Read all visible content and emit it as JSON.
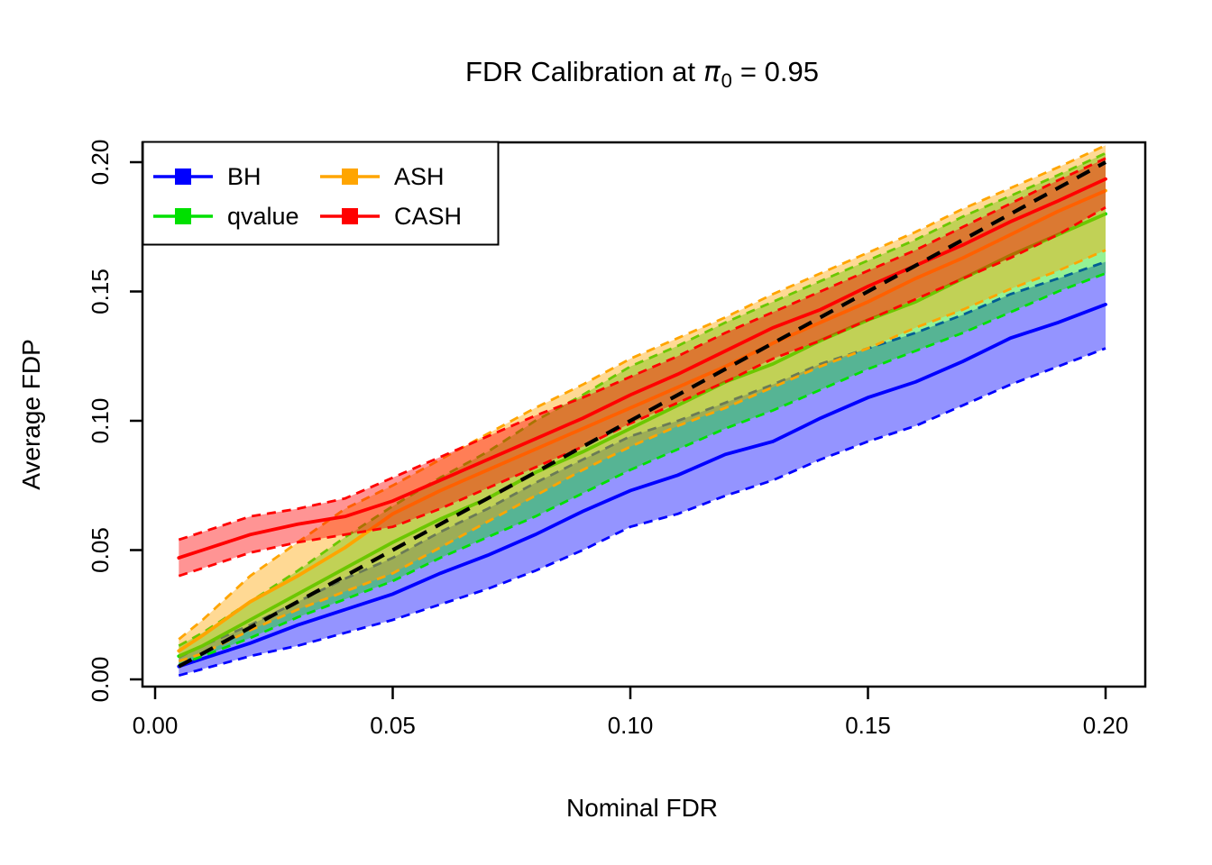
{
  "figure": {
    "title": {
      "pre": "FDR Calibration at",
      "pi": "π",
      "sub": "0",
      "post": "= 0.95"
    }
  },
  "chart_data": {
    "type": "line",
    "title": "FDR Calibration at π0 = 0.95",
    "xlabel": "Nominal FDR",
    "ylabel": "Average FDP",
    "xlim": [
      0,
      0.208
    ],
    "ylim": [
      0,
      0.208
    ],
    "grid": "off",
    "x_ticks": {
      "values": [
        0,
        0.05,
        0.1,
        0.15,
        0.2
      ],
      "labels": [
        "0.00",
        "0.05",
        "0.10",
        "0.15",
        "0.20"
      ]
    },
    "y_ticks": {
      "values": [
        0,
        0.05,
        0.1,
        0.15,
        0.2
      ],
      "labels": [
        "0.00",
        "0.05",
        "0.10",
        "0.15",
        "0.20"
      ]
    },
    "band_opacity": 0.42,
    "reference_line": {
      "name": "y-equals-x",
      "color": "#000000",
      "style": "dashed",
      "x": [
        0.005,
        0.2
      ],
      "y": [
        0.005,
        0.2
      ]
    },
    "x": [
      0.005,
      0.01,
      0.02,
      0.03,
      0.04,
      0.05,
      0.06,
      0.07,
      0.08,
      0.09,
      0.1,
      0.11,
      0.12,
      0.13,
      0.14,
      0.15,
      0.16,
      0.17,
      0.18,
      0.19,
      0.2
    ],
    "series": [
      {
        "name": "BH",
        "color": "#0000FF",
        "mean": [
          0.005,
          0.008,
          0.014,
          0.021,
          0.027,
          0.033,
          0.041,
          0.048,
          0.056,
          0.065,
          0.073,
          0.079,
          0.087,
          0.092,
          0.101,
          0.109,
          0.115,
          0.123,
          0.132,
          0.138,
          0.145
        ],
        "lower": [
          0.0015,
          0.004,
          0.009,
          0.013,
          0.018,
          0.023,
          0.029,
          0.035,
          0.042,
          0.05,
          0.059,
          0.064,
          0.071,
          0.077,
          0.085,
          0.092,
          0.098,
          0.106,
          0.114,
          0.121,
          0.128
        ],
        "upper": [
          0.0085,
          0.013,
          0.021,
          0.03,
          0.039,
          0.047,
          0.057,
          0.066,
          0.076,
          0.085,
          0.094,
          0.1,
          0.107,
          0.114,
          0.122,
          0.128,
          0.134,
          0.141,
          0.149,
          0.155,
          0.1615
        ]
      },
      {
        "name": "qvalue",
        "color": "#00E000",
        "mean": [
          0.009,
          0.013,
          0.023,
          0.033,
          0.043,
          0.053,
          0.062,
          0.07,
          0.08,
          0.088,
          0.097,
          0.106,
          0.115,
          0.122,
          0.131,
          0.139,
          0.146,
          0.155,
          0.164,
          0.172,
          0.18
        ],
        "lower": [
          0.0055,
          0.009,
          0.016,
          0.024,
          0.031,
          0.038,
          0.047,
          0.055,
          0.063,
          0.072,
          0.081,
          0.089,
          0.097,
          0.104,
          0.112,
          0.12,
          0.127,
          0.134,
          0.142,
          0.15,
          0.157
        ],
        "upper": [
          0.013,
          0.018,
          0.03,
          0.042,
          0.055,
          0.067,
          0.078,
          0.088,
          0.1,
          0.11,
          0.121,
          0.129,
          0.138,
          0.146,
          0.154,
          0.162,
          0.17,
          0.179,
          0.187,
          0.195,
          0.2035
        ]
      },
      {
        "name": "ASH",
        "color": "#FFA500",
        "mean": [
          0.011,
          0.017,
          0.03,
          0.04,
          0.051,
          0.064,
          0.073,
          0.081,
          0.089,
          0.097,
          0.105,
          0.113,
          0.121,
          0.13,
          0.138,
          0.146,
          0.155,
          0.163,
          0.172,
          0.181,
          0.189
        ],
        "lower": [
          0.007,
          0.01,
          0.019,
          0.027,
          0.034,
          0.041,
          0.051,
          0.061,
          0.071,
          0.081,
          0.09,
          0.098,
          0.105,
          0.113,
          0.121,
          0.128,
          0.136,
          0.143,
          0.151,
          0.158,
          0.166
        ],
        "upper": [
          0.0155,
          0.023,
          0.04,
          0.053,
          0.066,
          0.075,
          0.085,
          0.095,
          0.105,
          0.114,
          0.124,
          0.132,
          0.14,
          0.149,
          0.157,
          0.165,
          0.173,
          0.182,
          0.19,
          0.198,
          0.2065
        ]
      },
      {
        "name": "CASH",
        "color": "#FF0000",
        "mean": [
          0.047,
          0.05,
          0.056,
          0.06,
          0.063,
          0.069,
          0.077,
          0.085,
          0.093,
          0.101,
          0.11,
          0.118,
          0.127,
          0.136,
          0.143,
          0.152,
          0.16,
          0.168,
          0.177,
          0.185,
          0.1935
        ],
        "lower": [
          0.04,
          0.043,
          0.049,
          0.053,
          0.056,
          0.059,
          0.066,
          0.074,
          0.082,
          0.09,
          0.099,
          0.107,
          0.115,
          0.124,
          0.131,
          0.139,
          0.147,
          0.155,
          0.163,
          0.172,
          0.1825
        ],
        "upper": [
          0.054,
          0.057,
          0.063,
          0.066,
          0.07,
          0.078,
          0.086,
          0.094,
          0.102,
          0.109,
          0.117,
          0.125,
          0.134,
          0.142,
          0.15,
          0.158,
          0.166,
          0.175,
          0.184,
          0.193,
          0.2015
        ]
      }
    ],
    "legend": {
      "position": "top-left",
      "columns": 2,
      "entries": [
        "BH",
        "qvalue",
        "ASH",
        "CASH"
      ]
    }
  }
}
